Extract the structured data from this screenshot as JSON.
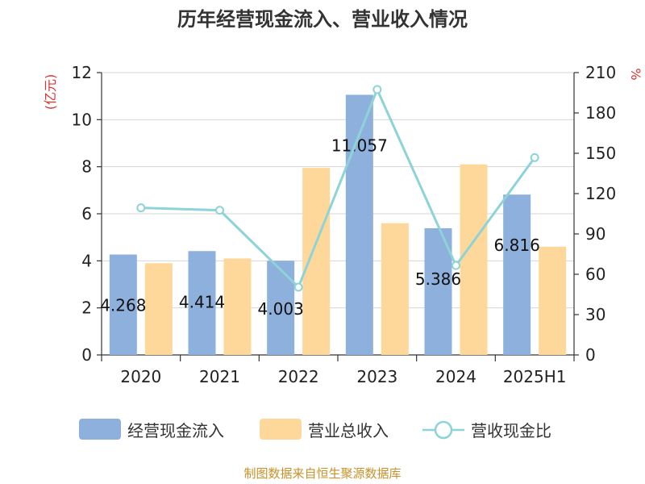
{
  "chart_data": {
    "type": "bar",
    "title": "历年经营现金流入、营业收入情况",
    "categories": [
      "2020",
      "2021",
      "2022",
      "2023",
      "2024",
      "2025H1"
    ],
    "series": [
      {
        "name": "经营现金流入",
        "type": "bar",
        "axis": "left",
        "color": "#8eb0dc",
        "values": [
          4.268,
          4.414,
          4.003,
          11.057,
          5.386,
          6.816
        ],
        "labels": [
          "4.268",
          "4.414",
          "4.003",
          "11.057",
          "5.386",
          "6.816"
        ]
      },
      {
        "name": "营业总收入",
        "type": "bar",
        "axis": "left",
        "color": "#fdd89a",
        "values": [
          3.9,
          4.1,
          7.95,
          5.6,
          8.1,
          4.6
        ]
      },
      {
        "name": "营收现金比",
        "type": "line",
        "axis": "right",
        "color": "#8dd3d8",
        "values": [
          109.4,
          107.6,
          50.4,
          197.4,
          66.5,
          146.8
        ]
      }
    ],
    "left_axis": {
      "unit": "(亿元)",
      "min": 0,
      "max": 12,
      "ticks": [
        "0",
        "2",
        "4",
        "6",
        "8",
        "10",
        "12"
      ]
    },
    "right_axis": {
      "unit": "%",
      "min": 0,
      "max": 210,
      "ticks": [
        "0",
        "30",
        "60",
        "90",
        "120",
        "150",
        "180",
        "210"
      ]
    },
    "grid": true,
    "legend_position": "bottom",
    "unit_color": "#e03030"
  },
  "source_text": "制图数据来自恒生聚源数据库",
  "source_color": "#c8912a"
}
